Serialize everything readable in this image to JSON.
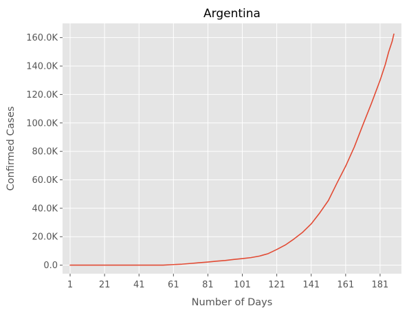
{
  "chart_data": {
    "type": "line",
    "title": "Argentina",
    "xlabel": "Number of Days",
    "ylabel": "Confirmed Cases",
    "xlim": [
      -3.4,
      193.4
    ],
    "ylim": [
      -6000,
      170000
    ],
    "grid": true,
    "x_ticks": [
      {
        "value": 1,
        "label": "1"
      },
      {
        "value": 21,
        "label": "21"
      },
      {
        "value": 41,
        "label": "41"
      },
      {
        "value": 61,
        "label": "61"
      },
      {
        "value": 81,
        "label": "81"
      },
      {
        "value": 101,
        "label": "101"
      },
      {
        "value": 121,
        "label": "121"
      },
      {
        "value": 141,
        "label": "141"
      },
      {
        "value": 161,
        "label": "161"
      },
      {
        "value": 181,
        "label": "181"
      }
    ],
    "y_ticks": [
      {
        "value": 0,
        "label": "0.0"
      },
      {
        "value": 20000,
        "label": "20.0K"
      },
      {
        "value": 40000,
        "label": "40.0K"
      },
      {
        "value": 60000,
        "label": "60.0K"
      },
      {
        "value": 80000,
        "label": "80.0K"
      },
      {
        "value": 100000,
        "label": "100.0K"
      },
      {
        "value": 120000,
        "label": "120.0K"
      },
      {
        "value": 140000,
        "label": "140.0K"
      },
      {
        "value": 160000,
        "label": "160.0K"
      }
    ],
    "series": [
      {
        "color": "#e24a33",
        "x": [
          1,
          21,
          41,
          55,
          61,
          66,
          71,
          76,
          81,
          86,
          91,
          96,
          101,
          106,
          111,
          116,
          121,
          126,
          131,
          136,
          141,
          146,
          151,
          156,
          161,
          166,
          171,
          176,
          181,
          184,
          186,
          188,
          189
        ],
        "y": [
          0,
          0,
          0,
          0,
          400,
          700,
          1200,
          1700,
          2200,
          2800,
          3300,
          4000,
          4600,
          5300,
          6400,
          8100,
          11000,
          14200,
          18400,
          23100,
          29000,
          36800,
          45500,
          57800,
          69600,
          83000,
          98600,
          113800,
          130000,
          141000,
          150000,
          157300,
          162500
        ]
      }
    ]
  }
}
